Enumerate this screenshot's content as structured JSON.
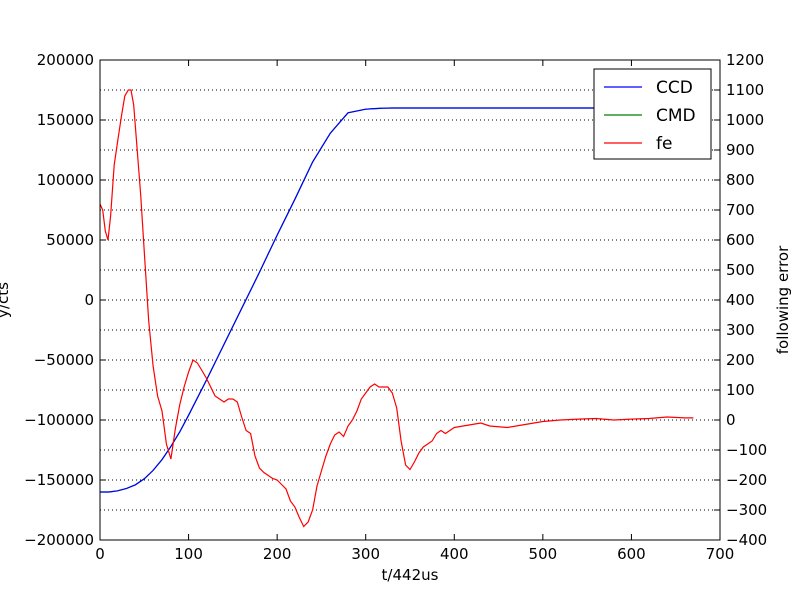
{
  "chart_data": {
    "type": "line",
    "title": "",
    "xlabel": "t/442us",
    "ylabel_left": "y/cts",
    "ylabel_right": "following error",
    "xlim": [
      0,
      700
    ],
    "ylim_left": [
      -200000,
      200000
    ],
    "ylim_right": [
      -400,
      1200
    ],
    "grid": "horizontal dotted (right axis ticks)",
    "legend_position": "top-right",
    "x_ticks": [
      "0",
      "100",
      "200",
      "300",
      "400",
      "500",
      "600",
      "700"
    ],
    "y_left_ticks": [
      "200000",
      "150000",
      "100000",
      "50000",
      "0",
      "−50000",
      "−100000",
      "−150000",
      "−200000"
    ],
    "y_right_ticks": [
      "1200",
      "1100",
      "1000",
      "900",
      "800",
      "700",
      "600",
      "500",
      "400",
      "300",
      "200",
      "100",
      "0",
      "−100",
      "−200",
      "−300",
      "−400"
    ],
    "series": [
      {
        "name": "CCD",
        "axis": "left",
        "color": "#0000ff",
        "x": [
          0,
          10,
          20,
          30,
          40,
          50,
          60,
          70,
          80,
          90,
          100,
          120,
          140,
          160,
          180,
          200,
          220,
          240,
          260,
          280,
          300,
          310,
          320,
          330,
          340,
          360,
          400,
          500,
          600,
          670
        ],
        "y": [
          -160000,
          -160000,
          -159000,
          -157000,
          -154000,
          -149000,
          -142000,
          -133000,
          -122000,
          -110000,
          -96000,
          -67000,
          -37000,
          -7000,
          23000,
          54000,
          84000,
          115000,
          139000,
          156000,
          159000,
          159500,
          159800,
          160000,
          160000,
          160000,
          160000,
          160000,
          160000,
          160000
        ]
      },
      {
        "name": "CMD",
        "axis": "left",
        "color": "#008000",
        "x": [
          0,
          10,
          20,
          30,
          40,
          50,
          60,
          70,
          80,
          90,
          100,
          120,
          140,
          160,
          180,
          200,
          220,
          240,
          260,
          280,
          300,
          310,
          320,
          330,
          340,
          360,
          400,
          500,
          600,
          670
        ],
        "y": [
          -160000,
          -160000,
          -159000,
          -157000,
          -154000,
          -149000,
          -142000,
          -133000,
          -122000,
          -110000,
          -96000,
          -67000,
          -37000,
          -7000,
          23000,
          54000,
          84000,
          115000,
          139000,
          156000,
          159000,
          159500,
          159800,
          160000,
          160000,
          160000,
          160000,
          160000,
          160000,
          160000
        ]
      },
      {
        "name": "fe",
        "axis": "right",
        "color": "#ff0000",
        "x": [
          0,
          3,
          6,
          9,
          12,
          16,
          20,
          24,
          28,
          32,
          35,
          38,
          42,
          46,
          50,
          55,
          60,
          65,
          70,
          75,
          80,
          85,
          90,
          95,
          100,
          105,
          110,
          115,
          120,
          125,
          130,
          135,
          140,
          145,
          150,
          155,
          160,
          165,
          170,
          175,
          180,
          185,
          190,
          195,
          200,
          205,
          210,
          215,
          220,
          225,
          230,
          235,
          240,
          245,
          250,
          255,
          260,
          265,
          270,
          275,
          280,
          285,
          290,
          295,
          300,
          305,
          310,
          315,
          320,
          325,
          330,
          335,
          340,
          345,
          350,
          355,
          360,
          365,
          370,
          375,
          380,
          385,
          390,
          400,
          410,
          420,
          430,
          440,
          460,
          480,
          500,
          520,
          540,
          560,
          580,
          600,
          620,
          640,
          660,
          670
        ],
        "y": [
          720,
          700,
          630,
          600,
          680,
          850,
          930,
          1010,
          1080,
          1100,
          1100,
          1050,
          900,
          750,
          560,
          330,
          180,
          80,
          30,
          -80,
          -130,
          -30,
          50,
          110,
          160,
          200,
          190,
          165,
          140,
          110,
          80,
          70,
          60,
          70,
          70,
          60,
          10,
          -35,
          -45,
          -120,
          -160,
          -175,
          -185,
          -195,
          -200,
          -215,
          -230,
          -270,
          -290,
          -325,
          -355,
          -340,
          -300,
          -220,
          -170,
          -120,
          -80,
          -50,
          -40,
          -55,
          -20,
          0,
          30,
          70,
          90,
          110,
          120,
          110,
          110,
          110,
          90,
          40,
          -70,
          -150,
          -165,
          -140,
          -110,
          -90,
          -80,
          -70,
          -45,
          -35,
          -45,
          -25,
          -20,
          -15,
          -10,
          -20,
          -25,
          -15,
          -5,
          0,
          3,
          5,
          0,
          3,
          5,
          10,
          7,
          7
        ]
      }
    ]
  }
}
